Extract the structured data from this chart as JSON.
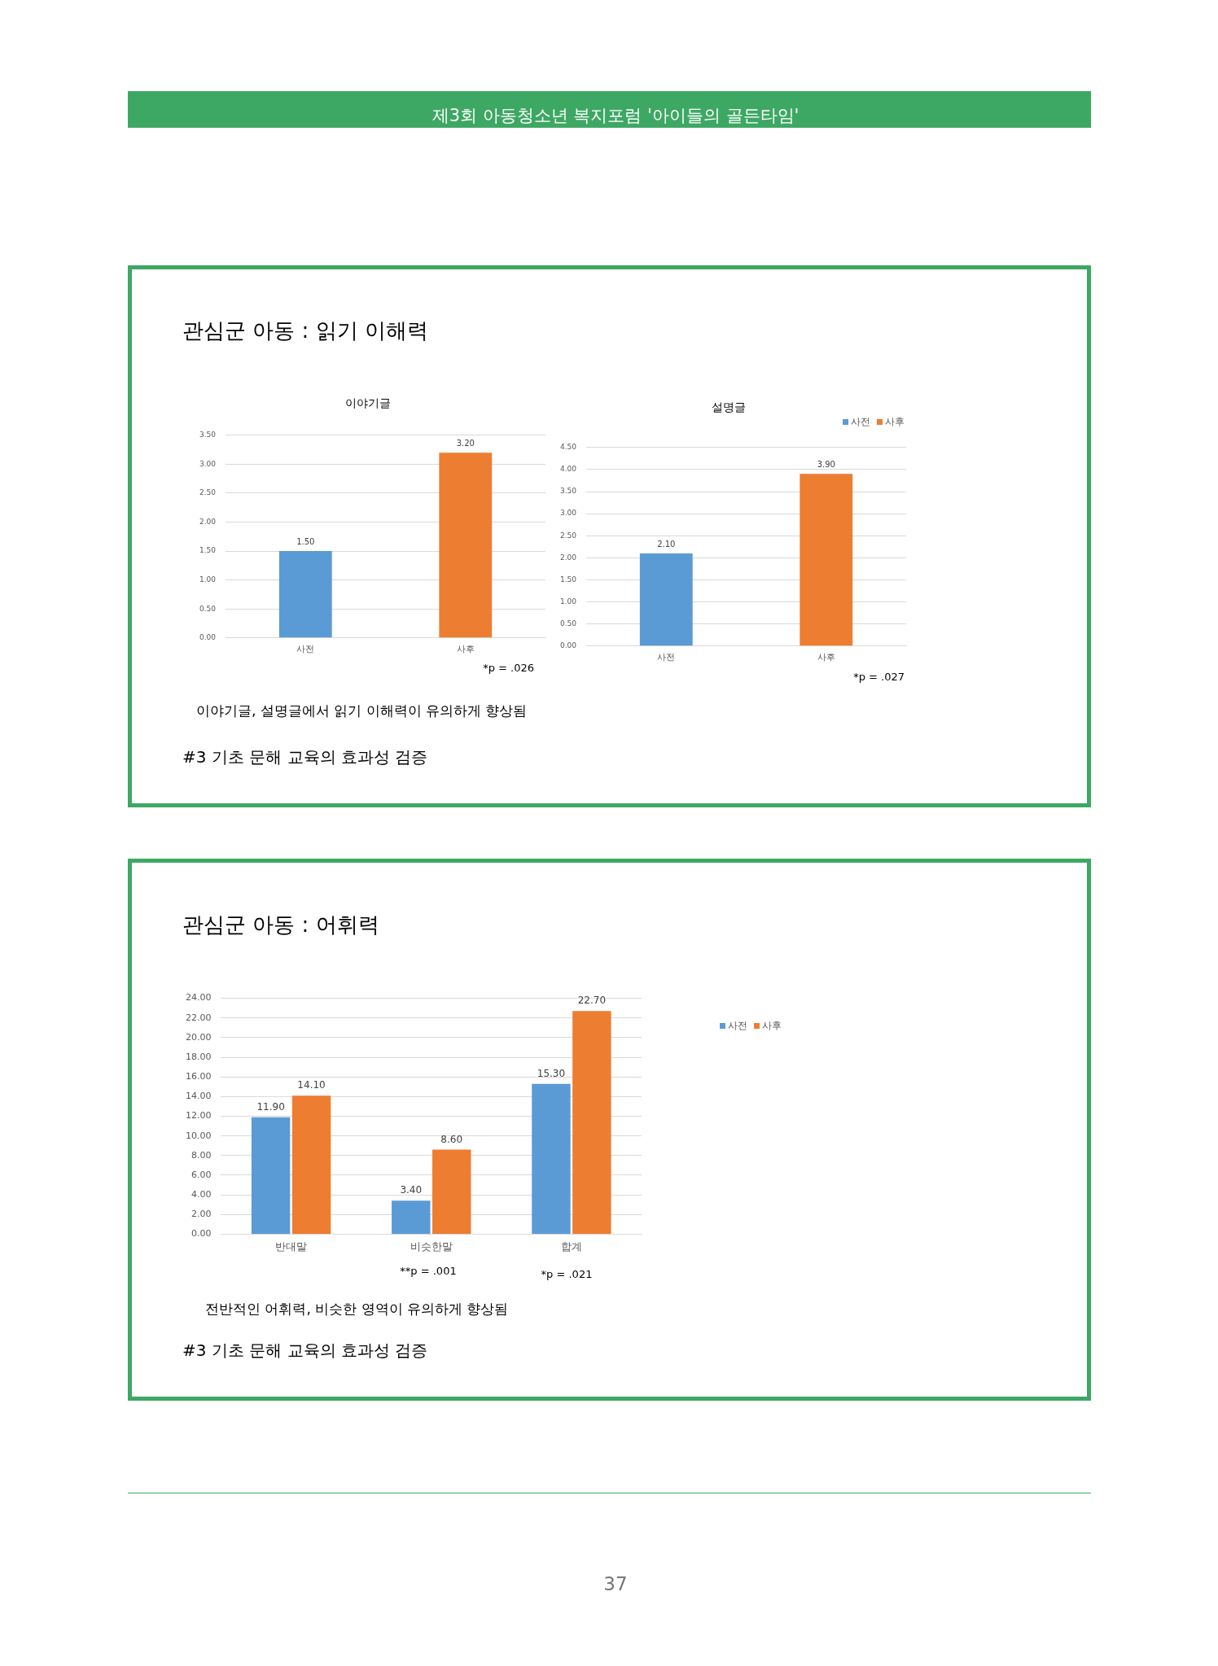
{
  "chart_data": [
    {
      "type": "bar",
      "title": "이야기글",
      "categories": [
        "사전",
        "사후"
      ],
      "values": [
        1.5,
        3.2
      ],
      "colors": [
        "#5b9bd5",
        "#ed7d31"
      ],
      "value_labels": [
        "1.50",
        "3.20"
      ],
      "ylim": [
        0,
        3.5
      ],
      "yticks": [
        {
          "value": 0,
          "label": "0.00"
        },
        {
          "value": 0.5,
          "label": "0.50"
        },
        {
          "value": 1,
          "label": "1.00"
        },
        {
          "value": 1.5,
          "label": "1.50"
        },
        {
          "value": 2,
          "label": "2.00"
        },
        {
          "value": 2.5,
          "label": "2.50"
        },
        {
          "value": 3,
          "label": "3.00"
        },
        {
          "value": 3.5,
          "label": "3.50"
        }
      ],
      "grid": "y",
      "annotations": [
        "제3회 아동청소년 복지포럼 '아이들의 골든타임'",
        "관심군 아동 : 읽기 이해력",
        "*p = .026"
      ]
    },
    {
      "type": "bar",
      "title": "설명글",
      "categories": [
        "사전",
        "사후"
      ],
      "series": [
        {
          "name": "사전",
          "color": "#5b9bd5",
          "values": [
            2.1,
            null
          ],
          "value_labels": [
            "2.10",
            null
          ]
        },
        {
          "name": "사후",
          "color": "#ed7d31",
          "values": [
            null,
            3.9
          ],
          "value_labels": [
            null,
            "3.90"
          ]
        }
      ],
      "ylim": [
        0,
        4.5
      ],
      "yticks": [
        {
          "value": 0,
          "label": "0.00"
        },
        {
          "value": 0.5,
          "label": "0.50"
        },
        {
          "value": 1,
          "label": "1.00"
        },
        {
          "value": 1.5,
          "label": "1.50"
        },
        {
          "value": 2,
          "label": "2.00"
        },
        {
          "value": 2.5,
          "label": "2.50"
        },
        {
          "value": 3,
          "label": "3.00"
        },
        {
          "value": 3.5,
          "label": "3.50"
        },
        {
          "value": 4,
          "label": "4.00"
        },
        {
          "value": 4.5,
          "label": "4.50"
        }
      ],
      "grid": "y",
      "legend": "top right",
      "annotations": [
        "*p = .027",
        "이야기글, 설명글에서 읽기 이해력이 유의하게 향상됨",
        "#3 기초 문해 교육의 효과성 검증"
      ]
    },
    {
      "type": "bar",
      "title": "관심군 아동 : 어휘력",
      "categories": [
        "반대말",
        "비슷한말",
        "합계"
      ],
      "series": [
        {
          "name": "사전",
          "color": "#5b9bd5",
          "values": [
            11.9,
            3.4,
            15.3
          ],
          "value_labels": [
            "11.90",
            "3.40",
            "15.30"
          ]
        },
        {
          "name": "사후",
          "color": "#ed7d31",
          "values": [
            14.1,
            8.6,
            22.7
          ],
          "value_labels": [
            "14.10",
            "8.60",
            "22.70"
          ]
        }
      ],
      "ylim": [
        0,
        24
      ],
      "yticks": [
        {
          "value": 0,
          "label": "0.00"
        },
        {
          "value": 2,
          "label": "2.00"
        },
        {
          "value": 4,
          "label": "4.00"
        },
        {
          "value": 6,
          "label": "6.00"
        },
        {
          "value": 8,
          "label": "8.00"
        },
        {
          "value": 10,
          "label": "10.00"
        },
        {
          "value": 12,
          "label": "12.00"
        },
        {
          "value": 14,
          "label": "14.00"
        },
        {
          "value": 16,
          "label": "16.00"
        },
        {
          "value": 18,
          "label": "18.00"
        },
        {
          "value": 20,
          "label": "20.00"
        },
        {
          "value": 22,
          "label": "22.00"
        },
        {
          "value": 24,
          "label": "24.00"
        }
      ],
      "grid": "y",
      "legend": "right",
      "annotations": [
        "**p = .001",
        "*p = .021",
        "전반적인 어휘력, 비슷한 영역이 유의하게 향상됨",
        "#3 기초 문해 교육의 효과성 검증",
        "37"
      ]
    }
  ]
}
